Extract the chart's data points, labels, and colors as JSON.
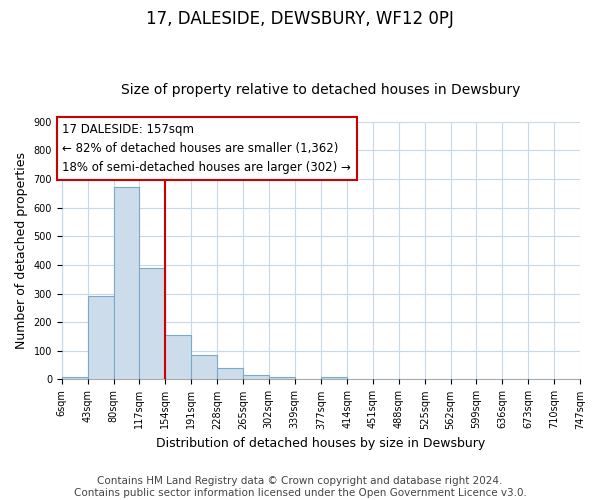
{
  "title": "17, DALESIDE, DEWSBURY, WF12 0PJ",
  "subtitle": "Size of property relative to detached houses in Dewsbury",
  "xlabel": "Distribution of detached houses by size in Dewsbury",
  "ylabel": "Number of detached properties",
  "bin_edges": [
    6,
    43,
    80,
    117,
    154,
    191,
    228,
    265,
    302,
    339,
    377,
    414,
    451,
    488,
    525,
    562,
    599,
    636,
    673,
    710,
    747
  ],
  "bin_labels": [
    "6sqm",
    "43sqm",
    "80sqm",
    "117sqm",
    "154sqm",
    "191sqm",
    "228sqm",
    "265sqm",
    "302sqm",
    "339sqm",
    "377sqm",
    "414sqm",
    "451sqm",
    "488sqm",
    "525sqm",
    "562sqm",
    "599sqm",
    "636sqm",
    "673sqm",
    "710sqm",
    "747sqm"
  ],
  "bar_heights": [
    8,
    293,
    671,
    390,
    155,
    85,
    40,
    15,
    10,
    0,
    10,
    0,
    0,
    0,
    0,
    0,
    0,
    0,
    0,
    0
  ],
  "bar_color": "#cddceb",
  "bar_edgecolor": "#7aaac8",
  "vline_x": 154,
  "vline_color": "#cc0000",
  "ylim": [
    0,
    900
  ],
  "yticks": [
    0,
    100,
    200,
    300,
    400,
    500,
    600,
    700,
    800,
    900
  ],
  "annotation_title": "17 DALESIDE: 157sqm",
  "annotation_line1": "← 82% of detached houses are smaller (1,362)",
  "annotation_line2": "18% of semi-detached houses are larger (302) →",
  "annotation_box_color": "#ffffff",
  "annotation_box_edgecolor": "#cc0000",
  "footer_line1": "Contains HM Land Registry data © Crown copyright and database right 2024.",
  "footer_line2": "Contains public sector information licensed under the Open Government Licence v3.0.",
  "bg_color": "#ffffff",
  "grid_color": "#c8d8e8",
  "title_fontsize": 12,
  "subtitle_fontsize": 10,
  "xlabel_fontsize": 9,
  "ylabel_fontsize": 9,
  "tick_fontsize": 7,
  "annotation_fontsize": 8.5,
  "footer_fontsize": 7.5
}
